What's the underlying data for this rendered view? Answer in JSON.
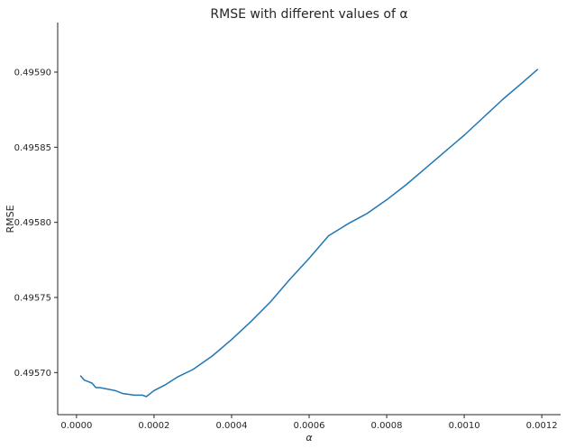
{
  "chart_data": {
    "type": "line",
    "title": "RMSE with different values of α",
    "xlabel": "α",
    "ylabel": "RMSE",
    "xlim": [
      -4.85e-05,
      0.0012485
    ],
    "ylim": [
      0.495672,
      0.495933
    ],
    "xticks": [
      0.0,
      0.0002,
      0.0004,
      0.0006,
      0.0008,
      0.001,
      0.0012
    ],
    "xtick_labels": [
      "0.0000",
      "0.0002",
      "0.0004",
      "0.0006",
      "0.0008",
      "0.0010",
      "0.0012"
    ],
    "yticks": [
      0.4957,
      0.49575,
      0.4958,
      0.49585,
      0.4959
    ],
    "ytick_labels": [
      "0.49570",
      "0.49575",
      "0.49580",
      "0.49585",
      "0.49590"
    ],
    "grid": false,
    "series": [
      {
        "color": "#1f77b4",
        "x": [
          1e-05,
          2e-05,
          3e-05,
          4e-05,
          5e-05,
          6e-05,
          8e-05,
          0.0001,
          0.00012,
          0.00015,
          0.00017,
          0.00018,
          0.00019,
          0.0002,
          0.00023,
          0.00026,
          0.0003,
          0.00035,
          0.0004,
          0.00045,
          0.0005,
          0.00055,
          0.0006,
          0.00065,
          0.0007,
          0.00075,
          0.0008,
          0.00085,
          0.0009,
          0.00095,
          0.001,
          0.00105,
          0.0011,
          0.00115,
          0.00119
        ],
        "y": [
          0.495698,
          0.495695,
          0.495694,
          0.495693,
          0.49569,
          0.49569,
          0.495689,
          0.495688,
          0.495686,
          0.495685,
          0.495685,
          0.495684,
          0.495686,
          0.495688,
          0.495692,
          0.495697,
          0.495702,
          0.495711,
          0.495722,
          0.495734,
          0.495747,
          0.495762,
          0.495776,
          0.495791,
          0.495799,
          0.495806,
          0.495815,
          0.495825,
          0.495836,
          0.495847,
          0.495858,
          0.49587,
          0.495882,
          0.495893,
          0.495902
        ]
      }
    ]
  }
}
